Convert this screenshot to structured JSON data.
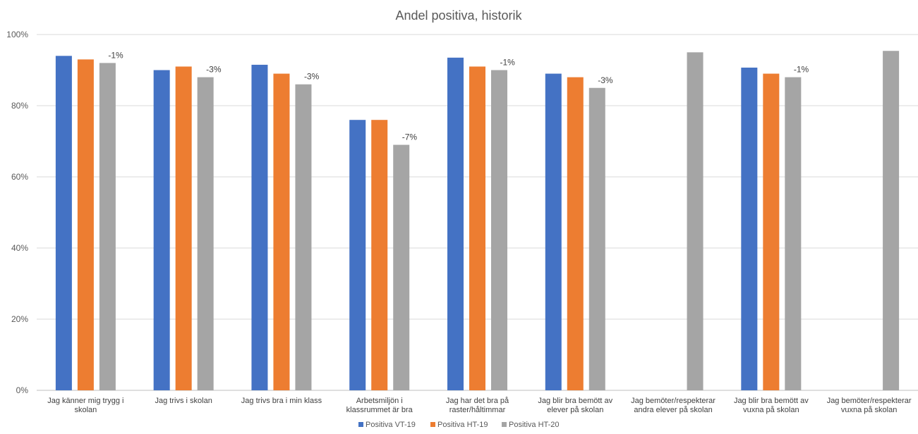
{
  "chart_data": {
    "type": "bar",
    "title": "Andel positiva, historik",
    "xlabel": "",
    "ylabel": "",
    "ylim": [
      0,
      100
    ],
    "yticks": [
      0,
      20,
      40,
      60,
      80,
      100
    ],
    "ytick_labels": [
      "0%",
      "20%",
      "40%",
      "60%",
      "80%",
      "100%"
    ],
    "grid": true,
    "legend_position": "bottom",
    "categories": [
      [
        "Jag känner mig trygg i",
        "skolan"
      ],
      [
        "Jag trivs i skolan"
      ],
      [
        "Jag trivs bra i min klass"
      ],
      [
        "Arbetsmiljön i",
        "klassrummet är bra"
      ],
      [
        "Jag har det bra på",
        "raster/håltimmar"
      ],
      [
        "Jag blir bra bemött av",
        "elever på skolan"
      ],
      [
        "Jag bemöter/respekterar",
        "andra elever på skolan"
      ],
      [
        "Jag blir bra bemött av",
        "vuxna på skolan"
      ],
      [
        "Jag bemöter/respekterar",
        "vuxna på skolan"
      ]
    ],
    "series": [
      {
        "name": "Positiva VT-19",
        "color": "#4472C4",
        "values": [
          94,
          90,
          91.5,
          76,
          93.5,
          89,
          null,
          90.7,
          null
        ]
      },
      {
        "name": "Positiva HT-19",
        "color": "#ED7D31",
        "values": [
          93,
          91,
          89,
          76,
          91,
          88,
          null,
          89,
          null
        ]
      },
      {
        "name": "Positiva HT-20",
        "color": "#A5A5A5",
        "values": [
          92,
          88,
          86,
          69,
          90,
          85,
          95,
          88,
          95.4
        ]
      }
    ],
    "annotations": [
      "-1%",
      "-3%",
      "-3%",
      "-7%",
      "-1%",
      "-3%",
      "",
      "-1%",
      ""
    ],
    "colors": {
      "gridline": "#D9D9D9",
      "axis": "#BFBFBF"
    }
  }
}
